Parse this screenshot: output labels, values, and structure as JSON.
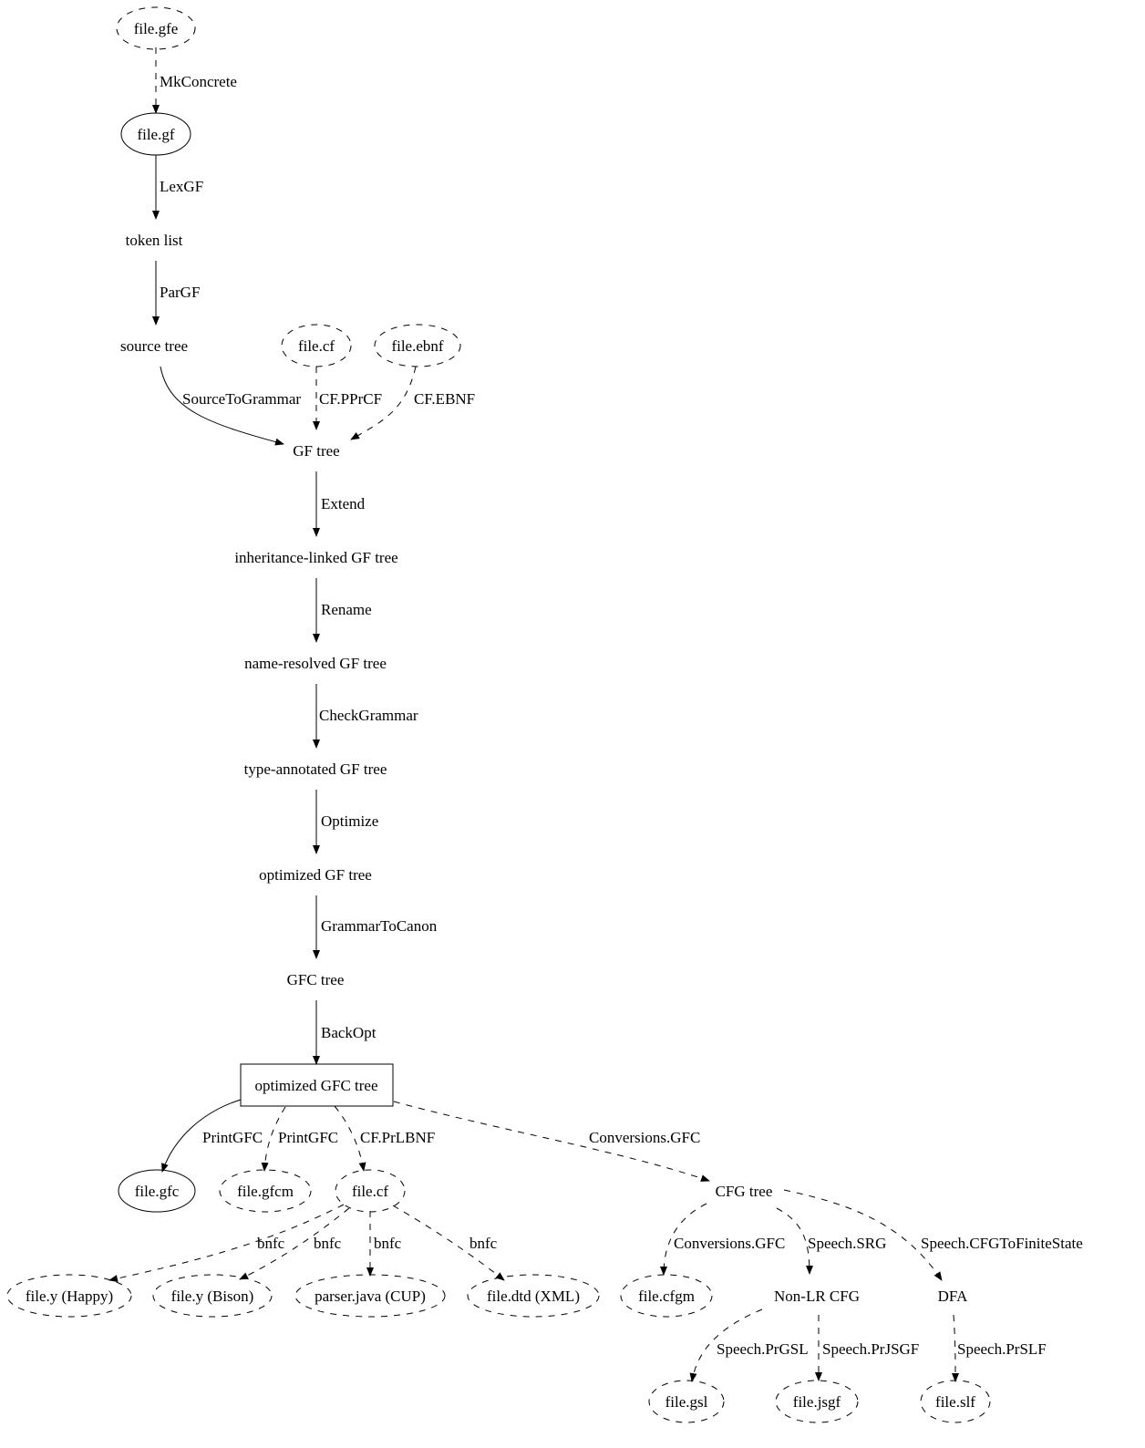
{
  "nodes": [
    {
      "id": "gfe",
      "label": "file.gfe",
      "shape": "ellipse",
      "style": "dashed"
    },
    {
      "id": "gf",
      "label": "file.gf",
      "shape": "ellipse",
      "style": "solid"
    },
    {
      "id": "token",
      "label": "token list",
      "shape": "plaintext"
    },
    {
      "id": "source",
      "label": "source tree",
      "shape": "plaintext"
    },
    {
      "id": "cf1",
      "label": "file.cf",
      "shape": "ellipse",
      "style": "dashed"
    },
    {
      "id": "ebnf",
      "label": "file.ebnf",
      "shape": "ellipse",
      "style": "dashed"
    },
    {
      "id": "gftree",
      "label": "GF tree",
      "shape": "plaintext"
    },
    {
      "id": "inh",
      "label": "inheritance-linked GF tree",
      "shape": "plaintext"
    },
    {
      "id": "nameres",
      "label": "name-resolved GF tree",
      "shape": "plaintext"
    },
    {
      "id": "typeann",
      "label": "type-annotated GF tree",
      "shape": "plaintext"
    },
    {
      "id": "optgf",
      "label": "optimized GF tree",
      "shape": "plaintext"
    },
    {
      "id": "gfc",
      "label": "GFC tree",
      "shape": "plaintext"
    },
    {
      "id": "optgfc",
      "label": "optimized GFC tree",
      "shape": "box",
      "style": "solid"
    },
    {
      "id": "filegfc",
      "label": "file.gfc",
      "shape": "ellipse",
      "style": "solid"
    },
    {
      "id": "gfcm",
      "label": "file.gfcm",
      "shape": "ellipse",
      "style": "dashed"
    },
    {
      "id": "cf2",
      "label": "file.cf",
      "shape": "ellipse",
      "style": "dashed"
    },
    {
      "id": "cfg",
      "label": "CFG tree",
      "shape": "plaintext"
    },
    {
      "id": "happy",
      "label": "file.y (Happy)",
      "shape": "ellipse",
      "style": "dashed"
    },
    {
      "id": "bison",
      "label": "file.y (Bison)",
      "shape": "ellipse",
      "style": "dashed"
    },
    {
      "id": "cup",
      "label": "parser.java (CUP)",
      "shape": "ellipse",
      "style": "dashed"
    },
    {
      "id": "dtd",
      "label": "file.dtd (XML)",
      "shape": "ellipse",
      "style": "dashed"
    },
    {
      "id": "cfgm",
      "label": "file.cfgm",
      "shape": "ellipse",
      "style": "dashed"
    },
    {
      "id": "nonlr",
      "label": "Non-LR CFG",
      "shape": "plaintext"
    },
    {
      "id": "dfa",
      "label": "DFA",
      "shape": "plaintext"
    },
    {
      "id": "gsl",
      "label": "file.gsl",
      "shape": "ellipse",
      "style": "dashed"
    },
    {
      "id": "jsgf",
      "label": "file.jsgf",
      "shape": "ellipse",
      "style": "dashed"
    },
    {
      "id": "slf",
      "label": "file.slf",
      "shape": "ellipse",
      "style": "dashed"
    }
  ],
  "edges": [
    {
      "from": "gfe",
      "to": "gf",
      "label": "MkConcrete",
      "style": "dashed"
    },
    {
      "from": "gf",
      "to": "token",
      "label": "LexGF",
      "style": "solid"
    },
    {
      "from": "token",
      "to": "source",
      "label": "ParGF",
      "style": "solid"
    },
    {
      "from": "source",
      "to": "gftree",
      "label": "SourceToGrammar",
      "style": "solid"
    },
    {
      "from": "cf1",
      "to": "gftree",
      "label": "CF.PPrCF",
      "style": "dashed"
    },
    {
      "from": "ebnf",
      "to": "gftree",
      "label": "CF.EBNF",
      "style": "dashed"
    },
    {
      "from": "gftree",
      "to": "inh",
      "label": "Extend",
      "style": "solid"
    },
    {
      "from": "inh",
      "to": "nameres",
      "label": "Rename",
      "style": "solid"
    },
    {
      "from": "nameres",
      "to": "typeann",
      "label": "CheckGrammar",
      "style": "solid"
    },
    {
      "from": "typeann",
      "to": "optgf",
      "label": "Optimize",
      "style": "solid"
    },
    {
      "from": "optgf",
      "to": "gfc",
      "label": "GrammarToCanon",
      "style": "solid"
    },
    {
      "from": "gfc",
      "to": "optgfc",
      "label": "BackOpt",
      "style": "solid"
    },
    {
      "from": "optgfc",
      "to": "filegfc",
      "label": "PrintGFC",
      "style": "solid"
    },
    {
      "from": "optgfc",
      "to": "gfcm",
      "label": "PrintGFC",
      "style": "dashed"
    },
    {
      "from": "optgfc",
      "to": "cf2",
      "label": "CF.PrLBNF",
      "style": "dashed"
    },
    {
      "from": "optgfc",
      "to": "cfg",
      "label": "Conversions.GFC",
      "style": "dashed"
    },
    {
      "from": "cf2",
      "to": "happy",
      "label": "bnfc",
      "style": "dashed"
    },
    {
      "from": "cf2",
      "to": "bison",
      "label": "bnfc",
      "style": "dashed"
    },
    {
      "from": "cf2",
      "to": "cup",
      "label": "bnfc",
      "style": "dashed"
    },
    {
      "from": "cf2",
      "to": "dtd",
      "label": "bnfc",
      "style": "dashed"
    },
    {
      "from": "cfg",
      "to": "cfgm",
      "label": "Conversions.GFC",
      "style": "dashed"
    },
    {
      "from": "cfg",
      "to": "nonlr",
      "label": "Speech.SRG",
      "style": "dashed"
    },
    {
      "from": "cfg",
      "to": "dfa",
      "label": "Speech.CFGToFiniteState",
      "style": "dashed"
    },
    {
      "from": "nonlr",
      "to": "gsl",
      "label": "Speech.PrGSL",
      "style": "dashed"
    },
    {
      "from": "nonlr",
      "to": "jsgf",
      "label": "Speech.PrJSGF",
      "style": "dashed"
    },
    {
      "from": "dfa",
      "to": "slf",
      "label": "Speech.PrSLF",
      "style": "dashed"
    }
  ]
}
